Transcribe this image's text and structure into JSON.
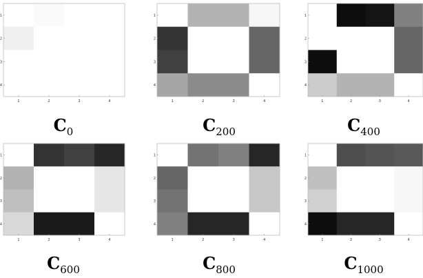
{
  "chart_data": [
    {
      "type": "heatmap",
      "title_main": "C",
      "title_sub": "0",
      "x_ticks": [
        "1",
        "2",
        "3",
        "4"
      ],
      "y_ticks": [
        "1",
        "2",
        "3",
        "4"
      ],
      "colormap": "gray (0 = black, 1 = white)",
      "matrix": [
        [
          1.0,
          0.98,
          1.0,
          1.0
        ],
        [
          0.94,
          1.0,
          1.0,
          1.0
        ],
        [
          1.0,
          1.0,
          1.0,
          1.0
        ],
        [
          1.0,
          1.0,
          1.0,
          1.0
        ]
      ]
    },
    {
      "type": "heatmap",
      "title_main": "C",
      "title_sub": "200",
      "x_ticks": [
        "1",
        "2",
        "3",
        "4"
      ],
      "y_ticks": [
        "1",
        "2",
        "3",
        "4"
      ],
      "colormap": "gray (0 = black, 1 = white)",
      "matrix": [
        [
          1.0,
          0.7,
          0.7,
          0.97
        ],
        [
          0.2,
          1.0,
          1.0,
          0.4
        ],
        [
          0.25,
          1.0,
          1.0,
          0.4
        ],
        [
          0.65,
          0.55,
          0.55,
          1.0
        ]
      ]
    },
    {
      "type": "heatmap",
      "title_main": "C",
      "title_sub": "400",
      "x_ticks": [
        "1",
        "2",
        "3",
        "4"
      ],
      "y_ticks": [
        "1",
        "2",
        "3",
        "4"
      ],
      "colormap": "gray (0 = black, 1 = white)",
      "matrix": [
        [
          1.0,
          0.05,
          0.08,
          0.5
        ],
        [
          1.0,
          1.0,
          1.0,
          0.4
        ],
        [
          0.05,
          1.0,
          1.0,
          0.4
        ],
        [
          0.8,
          0.7,
          0.7,
          1.0
        ]
      ]
    },
    {
      "type": "heatmap",
      "title_main": "C",
      "title_sub": "600",
      "x_ticks": [
        "1",
        "2",
        "3",
        "4"
      ],
      "y_ticks": [
        "1",
        "2",
        "3",
        "4"
      ],
      "colormap": "gray (0 = black, 1 = white)",
      "matrix": [
        [
          1.0,
          0.2,
          0.25,
          0.15
        ],
        [
          0.7,
          1.0,
          1.0,
          0.9
        ],
        [
          0.75,
          1.0,
          1.0,
          0.9
        ],
        [
          0.85,
          0.1,
          0.1,
          1.0
        ]
      ]
    },
    {
      "type": "heatmap",
      "title_main": "C",
      "title_sub": "800",
      "x_ticks": [
        "1",
        "2",
        "3",
        "4"
      ],
      "y_ticks": [
        "1",
        "2",
        "3",
        "4"
      ],
      "colormap": "gray (0 = black, 1 = white)",
      "matrix": [
        [
          1.0,
          0.45,
          0.5,
          0.15
        ],
        [
          0.4,
          1.0,
          1.0,
          0.78
        ],
        [
          0.45,
          1.0,
          1.0,
          0.78
        ],
        [
          0.5,
          0.15,
          0.15,
          1.0
        ]
      ]
    },
    {
      "type": "heatmap",
      "title_main": "C",
      "title_sub": "1000",
      "x_ticks": [
        "1",
        "2",
        "3",
        "4"
      ],
      "y_ticks": [
        "1",
        "2",
        "3",
        "4"
      ],
      "colormap": "gray (0 = black, 1 = white)",
      "matrix": [
        [
          1.0,
          0.3,
          0.33,
          0.35
        ],
        [
          0.75,
          1.0,
          1.0,
          0.97
        ],
        [
          0.82,
          1.0,
          1.0,
          0.97
        ],
        [
          0.05,
          0.15,
          0.15,
          1.0
        ]
      ]
    }
  ]
}
